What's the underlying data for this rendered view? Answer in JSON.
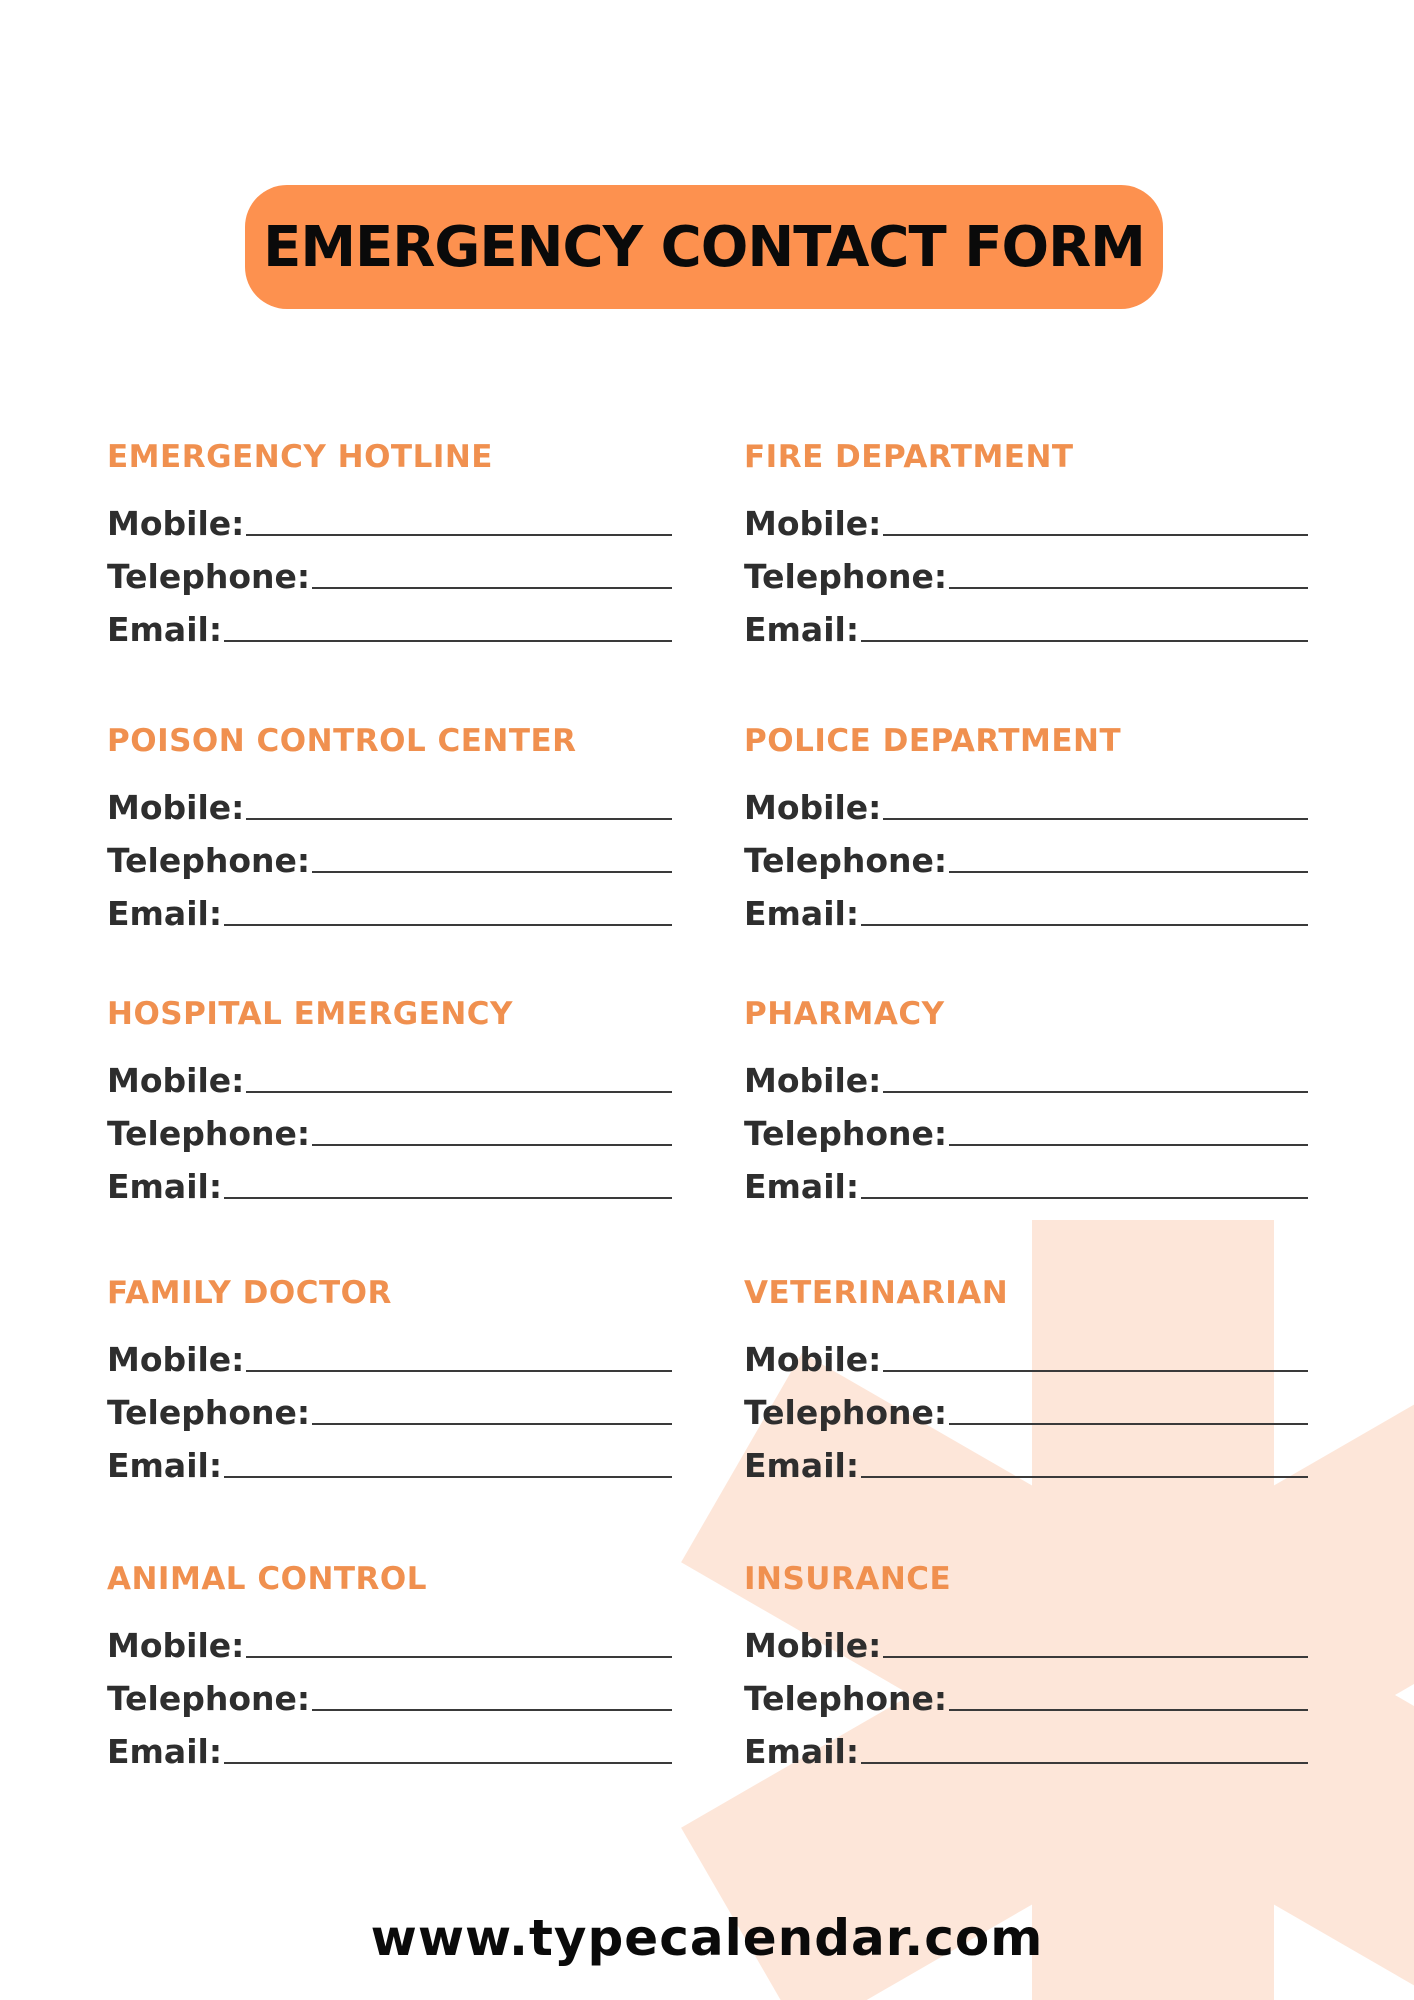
{
  "colors": {
    "accent": "#fd914f",
    "heading": "#f0904f",
    "watermark": "#fde6d9"
  },
  "title": "EMERGENCY CONTACT FORM",
  "field_labels": [
    "Mobile:",
    "Telephone:",
    "Email:"
  ],
  "sections": [
    {
      "heading": "EMERGENCY HOTLINE"
    },
    {
      "heading": "FIRE DEPARTMENT"
    },
    {
      "heading": "POISON CONTROL CENTER"
    },
    {
      "heading": "POLICE DEPARTMENT"
    },
    {
      "heading": "HOSPITAL EMERGENCY"
    },
    {
      "heading": "PHARMACY"
    },
    {
      "heading": "FAMILY DOCTOR"
    },
    {
      "heading": "VETERINARIAN"
    },
    {
      "heading": "ANIMAL CONTROL"
    },
    {
      "heading": "INSURANCE"
    }
  ],
  "watermark_icon": "asterisk-icon",
  "footer": "www.typecalendar.com"
}
